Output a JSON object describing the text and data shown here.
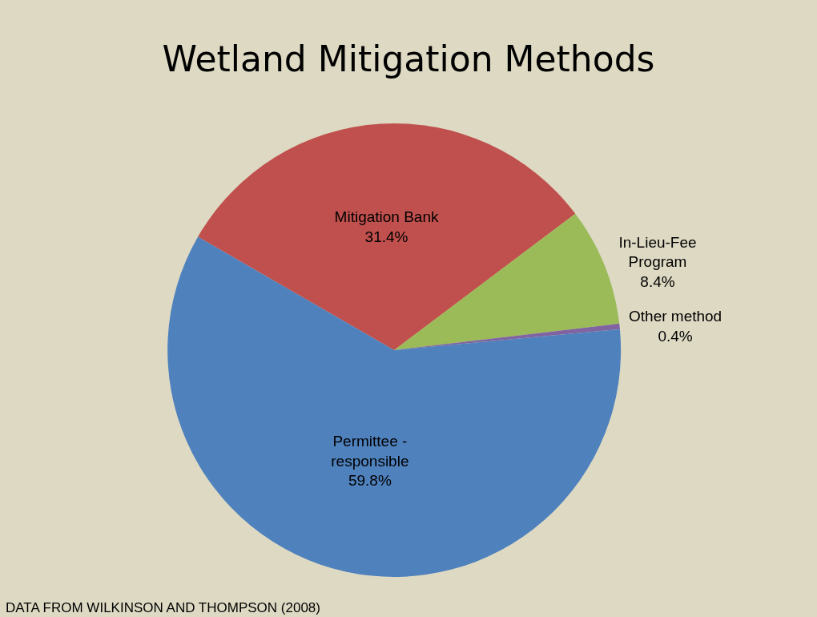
{
  "chart_data": {
    "type": "pie",
    "title": "Wetland Mitigation Methods",
    "categories": [
      "Mitigation Bank",
      "In-Lieu-Fee Program",
      "Other method",
      "Permittee - responsible"
    ],
    "values": [
      31.4,
      8.4,
      0.4,
      59.8
    ],
    "value_labels": [
      "31.4%",
      "8.4%",
      "0.4%",
      "59.8%"
    ],
    "colors": [
      "#c0504d",
      "#9bbb59",
      "#8064a2",
      "#4f81bd"
    ],
    "annotations": [
      "DATA FROM WILKINSON AND THOMPSON (2008)"
    ],
    "legend": false
  }
}
